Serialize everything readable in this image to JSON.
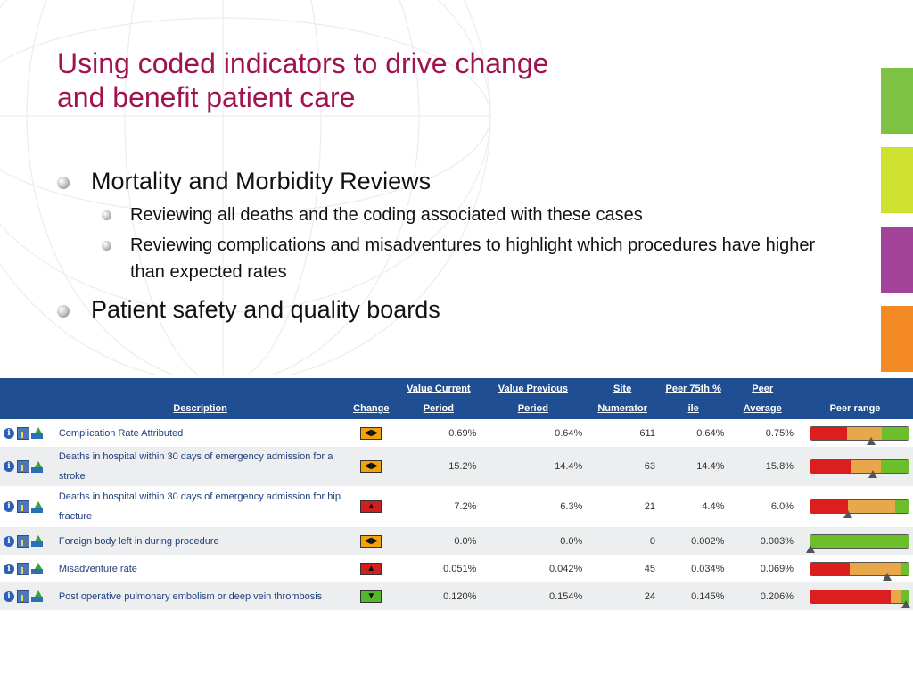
{
  "title": {
    "line1": "Using coded indicators to drive change",
    "line2": "and benefit patient care"
  },
  "bullets": [
    {
      "text": "Mortality and Morbidity Reviews",
      "sub": [
        "Reviewing all deaths and the coding associated with these cases",
        "Reviewing complications and misadventures to highlight which procedures have higher than expected rates"
      ]
    },
    {
      "text": "Patient safety and quality boards"
    }
  ],
  "stripe_colors": [
    "#7dc242",
    "#cde12e",
    "#a3439a",
    "#f38a24"
  ],
  "table": {
    "headers": {
      "description": "Description",
      "change": "Change",
      "value_current_1": "Value Current",
      "value_current_2": "Period",
      "value_previous_1": "Value Previous",
      "value_previous_2": "Period",
      "site_1": "Site",
      "site_2": "Numerator",
      "peer75_1": "Peer 75th %",
      "peer75_2": "ile",
      "peeravg_1": "Peer",
      "peeravg_2": "Average",
      "peer_range": "Peer range"
    },
    "rows": [
      {
        "description": "Complication Rate Attributed",
        "change": "both",
        "value_current": "0.69%",
        "value_previous": "0.64%",
        "site_numerator": "611",
        "peer_75th": "0.64%",
        "peer_average": "0.75%",
        "range": {
          "red": 0.37,
          "amber": 0.36,
          "green": 0.27,
          "marker": 0.62
        }
      },
      {
        "description": "Deaths in hospital within 30 days of emergency admission for a stroke",
        "change": "both",
        "value_current": "15.2%",
        "value_previous": "14.4%",
        "site_numerator": "63",
        "peer_75th": "14.4%",
        "peer_average": "15.8%",
        "range": {
          "red": 0.42,
          "amber": 0.3,
          "green": 0.28,
          "marker": 0.64
        }
      },
      {
        "description": "Deaths in hospital within 30 days of emergency admission for hip fracture",
        "change": "up",
        "value_current": "7.2%",
        "value_previous": "6.3%",
        "site_numerator": "21",
        "peer_75th": "4.4%",
        "peer_average": "6.0%",
        "range": {
          "red": 0.38,
          "amber": 0.48,
          "green": 0.14,
          "marker": 0.38
        }
      },
      {
        "description": "Foreign body left in during procedure",
        "change": "both",
        "value_current": "0.0%",
        "value_previous": "0.0%",
        "site_numerator": "0",
        "peer_75th": "0.002%",
        "peer_average": "0.003%",
        "range": {
          "red": 0.0,
          "amber": 0.0,
          "green": 1.0,
          "marker": 0.0
        }
      },
      {
        "description": "Misadventure rate",
        "change": "up",
        "value_current": "0.051%",
        "value_previous": "0.042%",
        "site_numerator": "45",
        "peer_75th": "0.034%",
        "peer_average": "0.069%",
        "range": {
          "red": 0.4,
          "amber": 0.52,
          "green": 0.08,
          "marker": 0.78
        }
      },
      {
        "description": "Post operative pulmonary embolism or deep vein thrombosis",
        "change": "down",
        "value_current": "0.120%",
        "value_previous": "0.154%",
        "site_numerator": "24",
        "peer_75th": "0.145%",
        "peer_average": "0.206%",
        "range": {
          "red": 0.82,
          "amber": 0.11,
          "green": 0.07,
          "marker": 0.97
        }
      }
    ]
  },
  "icons": {
    "info": "info-icon",
    "chart": "chart-icon",
    "upload": "export-icon",
    "change_both": "left-right-arrows-icon",
    "change_up": "up-arrow-icon",
    "change_down": "down-arrow-icon"
  }
}
